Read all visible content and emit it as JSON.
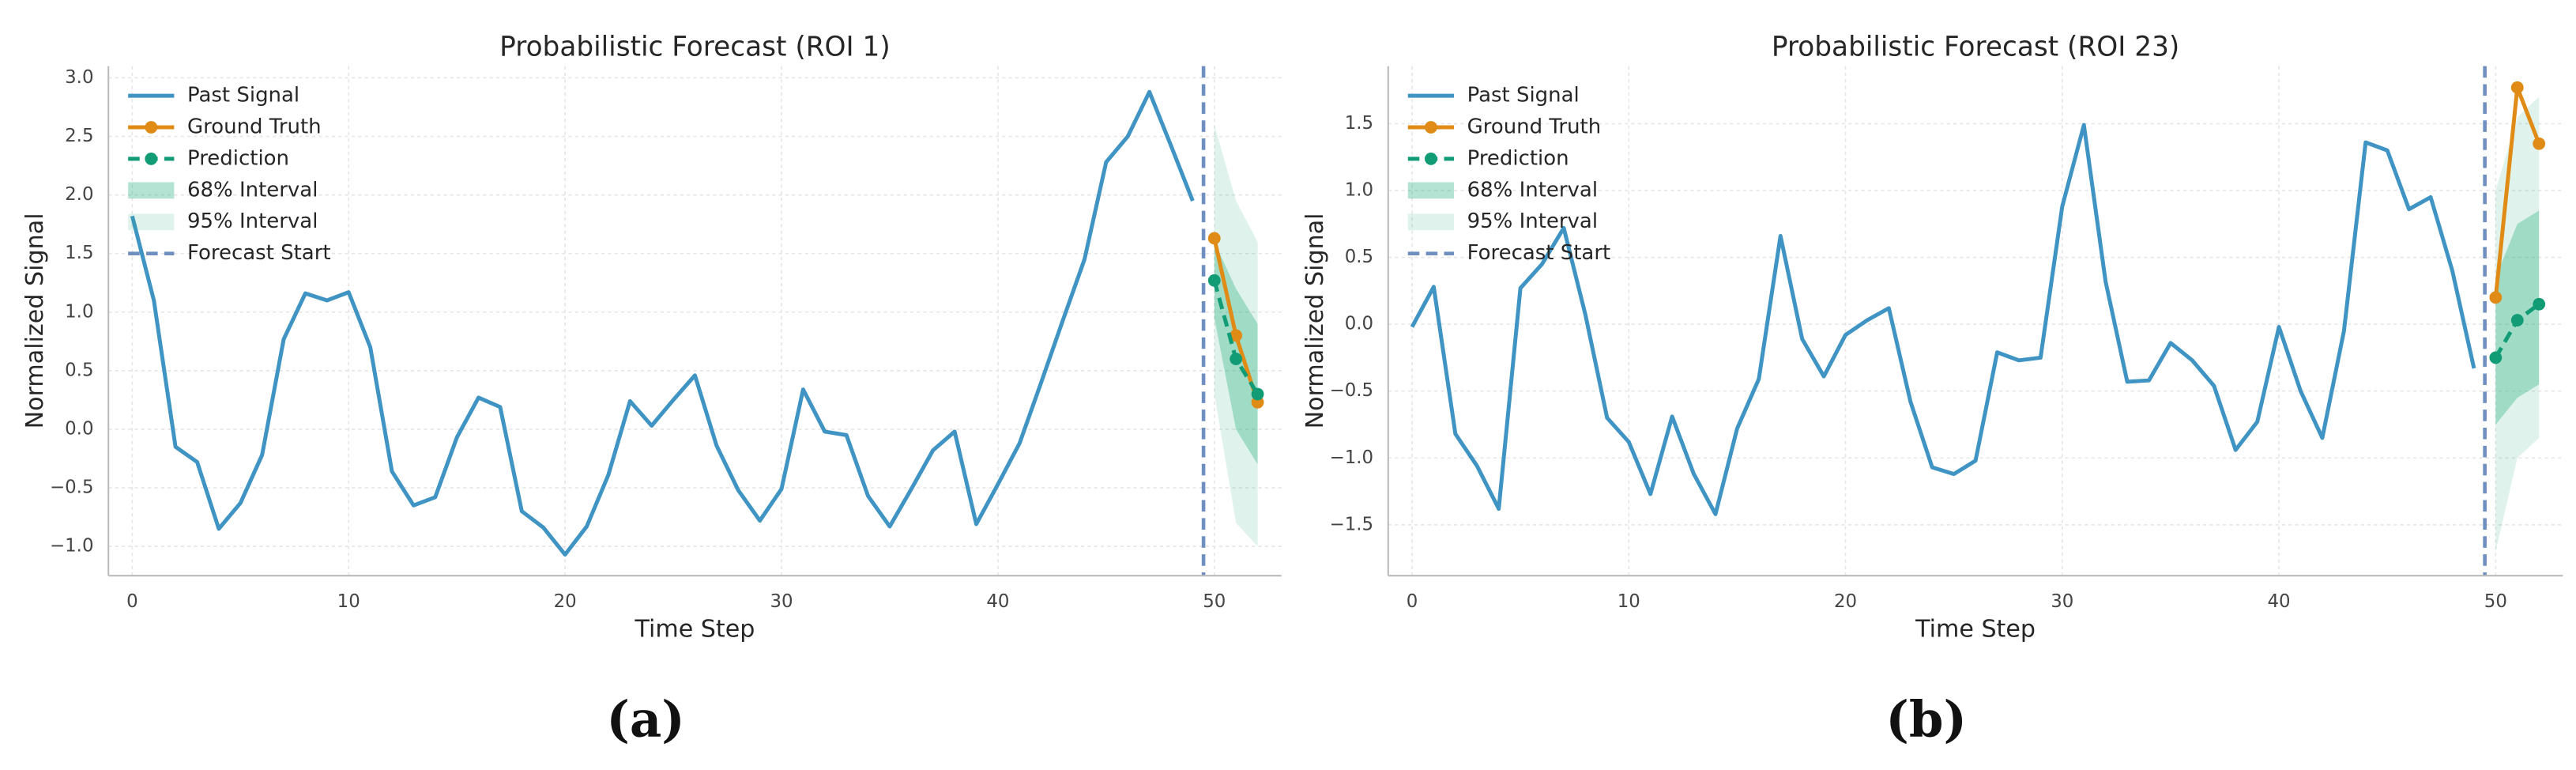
{
  "chart_data": [
    {
      "type": "line",
      "title": "Probabilistic Forecast (ROI 1)",
      "xlabel": "Time Step",
      "ylabel": "Normalized Signal",
      "caption": "(a)",
      "xlim": [
        -1.1,
        53.1
      ],
      "ylim": [
        -1.25,
        3.1
      ],
      "grid": true,
      "legend": "upper left",
      "xticks": [
        0,
        10,
        20,
        30,
        40,
        50
      ],
      "yticks": [
        {
          "value": -1.0,
          "label": "−1.0"
        },
        {
          "value": -0.5,
          "label": "−0.5"
        },
        {
          "value": 0.0,
          "label": "0.0"
        },
        0.5,
        {
          "value": 1.0,
          "label": "1.0"
        },
        1.5,
        {
          "value": 2.0,
          "label": "2.0"
        },
        2.5,
        {
          "value": 3.0,
          "label": "3.0"
        }
      ],
      "series": [
        {
          "name": "Past Signal",
          "color": "#3f94c4",
          "marker": false,
          "dash": false,
          "x": [
            0,
            1,
            2,
            3,
            4,
            5,
            6,
            7,
            8,
            9,
            10,
            11,
            12,
            13,
            14,
            15,
            16,
            17,
            18,
            19,
            20,
            21,
            22,
            23,
            24,
            25,
            26,
            27,
            28,
            29,
            30,
            31,
            32,
            33,
            34,
            35,
            36,
            37,
            38,
            39,
            40,
            41,
            42,
            43,
            44,
            45,
            46,
            47,
            48,
            49
          ],
          "values": [
            1.82,
            1.1,
            -0.15,
            -0.28,
            -0.85,
            -0.63,
            -0.22,
            0.77,
            1.16,
            1.1,
            1.17,
            0.7,
            -0.36,
            -0.65,
            -0.58,
            -0.07,
            0.27,
            0.19,
            -0.7,
            -0.84,
            -1.07,
            -0.83,
            -0.39,
            0.24,
            0.03,
            0.25,
            0.46,
            -0.14,
            -0.52,
            -0.78,
            -0.51,
            0.34,
            -0.02,
            -0.05,
            -0.57,
            -0.83,
            -0.51,
            -0.18,
            -0.02,
            -0.81,
            -0.47,
            -0.12,
            0.4,
            0.93,
            1.45,
            2.28,
            2.5,
            2.88,
            2.42,
            1.95
          ]
        },
        {
          "name": "Ground Truth",
          "color": "#e08b16",
          "marker": true,
          "dash": false,
          "x": [
            50,
            51,
            52
          ],
          "values": [
            1.63,
            0.8,
            0.23
          ]
        },
        {
          "name": "Prediction",
          "color": "#129c76",
          "marker": true,
          "dash": true,
          "x": [
            50,
            51,
            52
          ],
          "values": [
            1.27,
            0.6,
            0.3
          ]
        }
      ],
      "intervals": [
        {
          "name": "68% Interval",
          "color": "#2bae82",
          "opacity": 0.35,
          "x": [
            50,
            51,
            52
          ],
          "lower": [
            0.95,
            0.0,
            -0.3
          ],
          "upper": [
            1.6,
            1.2,
            0.9
          ]
        },
        {
          "name": "95% Interval",
          "color": "#2bae82",
          "opacity": 0.15,
          "x": [
            50,
            51,
            52
          ],
          "lower": [
            0.3,
            -0.8,
            -1.0
          ],
          "upper": [
            2.6,
            1.95,
            1.6
          ]
        }
      ],
      "vline": {
        "name": "Forecast Start",
        "x": 49.5,
        "color": "#6f8fc0"
      }
    },
    {
      "type": "line",
      "title": "Probabilistic Forecast (ROI 23)",
      "xlabel": "Time Step",
      "ylabel": "Normalized Signal",
      "caption": "(b)",
      "xlim": [
        -1.1,
        53.1
      ],
      "ylim": [
        -1.88,
        1.93
      ],
      "grid": true,
      "legend": "upper left",
      "xticks": [
        0,
        10,
        20,
        30,
        40,
        50
      ],
      "yticks": [
        {
          "value": -1.5,
          "label": "−1.5"
        },
        {
          "value": -1.0,
          "label": "−1.0"
        },
        {
          "value": -0.5,
          "label": "−0.5"
        },
        {
          "value": 0.0,
          "label": "0.0"
        },
        0.5,
        {
          "value": 1.0,
          "label": "1.0"
        },
        1.5
      ],
      "series": [
        {
          "name": "Past Signal",
          "color": "#3f94c4",
          "marker": false,
          "dash": false,
          "x": [
            0,
            1,
            2,
            3,
            4,
            5,
            6,
            7,
            8,
            9,
            10,
            11,
            12,
            13,
            14,
            15,
            16,
            17,
            18,
            19,
            20,
            21,
            22,
            23,
            24,
            25,
            26,
            27,
            28,
            29,
            30,
            31,
            32,
            33,
            34,
            35,
            36,
            37,
            38,
            39,
            40,
            41,
            42,
            43,
            44,
            45,
            46,
            47,
            48,
            49
          ],
          "values": [
            -0.02,
            0.28,
            -0.82,
            -1.06,
            -1.38,
            0.27,
            0.45,
            0.72,
            0.07,
            -0.7,
            -0.88,
            -1.27,
            -0.69,
            -1.12,
            -1.42,
            -0.78,
            -0.41,
            0.66,
            -0.11,
            -0.39,
            -0.08,
            0.03,
            0.12,
            -0.58,
            -1.07,
            -1.12,
            -1.02,
            -0.21,
            -0.27,
            -0.25,
            0.88,
            1.49,
            0.32,
            -0.43,
            -0.42,
            -0.14,
            -0.27,
            -0.46,
            -0.94,
            -0.73,
            -0.02,
            -0.5,
            -0.85,
            -0.05,
            1.36,
            1.3,
            0.86,
            0.95,
            0.4,
            -0.33
          ]
        },
        {
          "name": "Ground Truth",
          "color": "#e08b16",
          "marker": true,
          "dash": false,
          "x": [
            50,
            51,
            52
          ],
          "values": [
            0.2,
            1.77,
            1.35
          ]
        },
        {
          "name": "Prediction",
          "color": "#129c76",
          "marker": true,
          "dash": true,
          "x": [
            50,
            51,
            52
          ],
          "values": [
            -0.25,
            0.03,
            0.15
          ]
        }
      ],
      "intervals": [
        {
          "name": "68% Interval",
          "color": "#2bae82",
          "opacity": 0.35,
          "x": [
            50,
            51,
            52
          ],
          "lower": [
            -0.75,
            -0.55,
            -0.45
          ],
          "upper": [
            0.35,
            0.75,
            0.85
          ]
        },
        {
          "name": "95% Interval",
          "color": "#2bae82",
          "opacity": 0.15,
          "x": [
            50,
            51,
            52
          ],
          "lower": [
            -1.7,
            -1.0,
            -0.85
          ],
          "upper": [
            1.0,
            1.55,
            1.7
          ]
        }
      ],
      "vline": {
        "name": "Forecast Start",
        "x": 49.5,
        "color": "#6f8fc0"
      }
    }
  ]
}
